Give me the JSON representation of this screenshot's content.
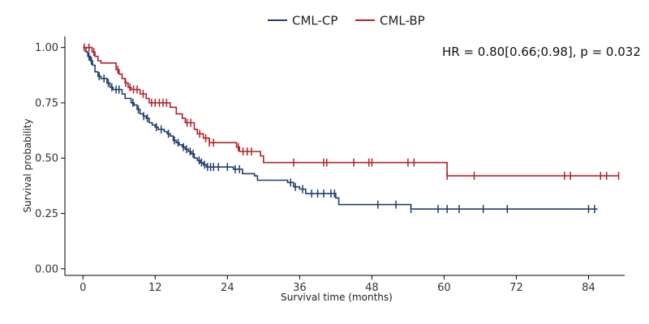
{
  "chart_data": {
    "type": "line",
    "subtype": "kaplan-meier step curve with censor marks",
    "title": "",
    "xlabel": "Survival time (months)",
    "ylabel": "Survival probability",
    "xlim": [
      -3,
      90
    ],
    "ylim": [
      -0.03,
      1.05
    ],
    "xticks": [
      0,
      12,
      24,
      36,
      48,
      60,
      72,
      84
    ],
    "yticks": [
      0.0,
      0.25,
      0.5,
      0.75,
      1.0
    ],
    "ytick_labels": [
      "0.00",
      "0.25",
      "0.50",
      "0.75",
      "1.00"
    ],
    "grid": false,
    "legend": {
      "placement": "top-center"
    },
    "annotation": "HR = 0.80[0.66;0.98], p = 0.032",
    "series": [
      {
        "name": "CML-CP",
        "color": "#1f3f6e",
        "steps": [
          [
            0,
            1.0
          ],
          [
            0.5,
            0.98
          ],
          [
            0.8,
            0.96
          ],
          [
            1.2,
            0.94
          ],
          [
            1.6,
            0.92
          ],
          [
            2,
            0.89
          ],
          [
            2.5,
            0.87
          ],
          [
            3,
            0.86
          ],
          [
            4,
            0.84
          ],
          [
            4.5,
            0.82
          ],
          [
            5,
            0.81
          ],
          [
            6.5,
            0.79
          ],
          [
            7,
            0.77
          ],
          [
            8,
            0.75
          ],
          [
            8.5,
            0.74
          ],
          [
            9,
            0.72
          ],
          [
            9.5,
            0.7
          ],
          [
            10,
            0.69
          ],
          [
            10.5,
            0.68
          ],
          [
            11,
            0.66
          ],
          [
            11.5,
            0.65
          ],
          [
            12,
            0.64
          ],
          [
            12.5,
            0.63
          ],
          [
            13.5,
            0.62
          ],
          [
            14,
            0.61
          ],
          [
            14.5,
            0.6
          ],
          [
            15,
            0.58
          ],
          [
            15.5,
            0.57
          ],
          [
            16,
            0.56
          ],
          [
            16.5,
            0.55
          ],
          [
            17,
            0.54
          ],
          [
            17.5,
            0.53
          ],
          [
            18,
            0.52
          ],
          [
            18.5,
            0.5
          ],
          [
            19,
            0.49
          ],
          [
            19.5,
            0.48
          ],
          [
            20,
            0.47
          ],
          [
            20.5,
            0.46
          ],
          [
            25,
            0.45
          ],
          [
            26.5,
            0.43
          ],
          [
            28.5,
            0.42
          ],
          [
            29,
            0.4
          ],
          [
            34,
            0.39
          ],
          [
            35,
            0.37
          ],
          [
            36,
            0.36
          ],
          [
            37,
            0.34
          ],
          [
            42,
            0.32
          ],
          [
            42.5,
            0.29
          ],
          [
            54.5,
            0.27
          ],
          [
            85.5,
            0.27
          ]
        ],
        "censor_times": [
          1.0,
          1.4,
          2.7,
          3.5,
          4.2,
          4.8,
          5.5,
          6.0,
          8.3,
          9.2,
          10.1,
          10.7,
          12.2,
          13.0,
          14.2,
          15.2,
          15.8,
          16.7,
          17.2,
          17.8,
          18.3,
          19.3,
          19.7,
          20.2,
          20.7,
          21.2,
          21.7,
          22.5,
          24.0,
          25.3,
          26.0,
          34.5,
          35.3,
          36.5,
          38.0,
          39.0,
          40.0,
          41.2,
          41.8,
          49.0,
          52.0,
          54.5,
          59.0,
          60.5,
          62.5,
          66.5,
          70.5,
          84.0,
          85.0
        ]
      },
      {
        "name": "CML-BP",
        "color": "#b0232a",
        "steps": [
          [
            0,
            1.0
          ],
          [
            1.5,
            0.98
          ],
          [
            2,
            0.96
          ],
          [
            2.5,
            0.94
          ],
          [
            3,
            0.93
          ],
          [
            5.5,
            0.9
          ],
          [
            6,
            0.88
          ],
          [
            6.5,
            0.86
          ],
          [
            7,
            0.84
          ],
          [
            7.5,
            0.82
          ],
          [
            8,
            0.81
          ],
          [
            9.5,
            0.79
          ],
          [
            10.5,
            0.77
          ],
          [
            11,
            0.75
          ],
          [
            14.5,
            0.73
          ],
          [
            15.5,
            0.7
          ],
          [
            16.5,
            0.68
          ],
          [
            17,
            0.66
          ],
          [
            18.5,
            0.63
          ],
          [
            19,
            0.61
          ],
          [
            20,
            0.59
          ],
          [
            21,
            0.57
          ],
          [
            25.5,
            0.55
          ],
          [
            26,
            0.53
          ],
          [
            29.5,
            0.51
          ],
          [
            30,
            0.48
          ],
          [
            60.5,
            0.42
          ],
          [
            89,
            0.42
          ]
        ],
        "censor_times": [
          0.2,
          1.0,
          1.8,
          5.8,
          7.1,
          7.8,
          8.4,
          9.0,
          10.0,
          11.4,
          12.0,
          12.7,
          13.3,
          13.9,
          17.3,
          17.9,
          19.4,
          20.4,
          21.0,
          21.7,
          25.8,
          26.6,
          27.3,
          28.0,
          35.0,
          40.0,
          40.5,
          45.0,
          47.5,
          48.0,
          54.0,
          55.0,
          60.5,
          65.0,
          80.0,
          81.0,
          86.0,
          87.0,
          89.0
        ]
      }
    ]
  }
}
